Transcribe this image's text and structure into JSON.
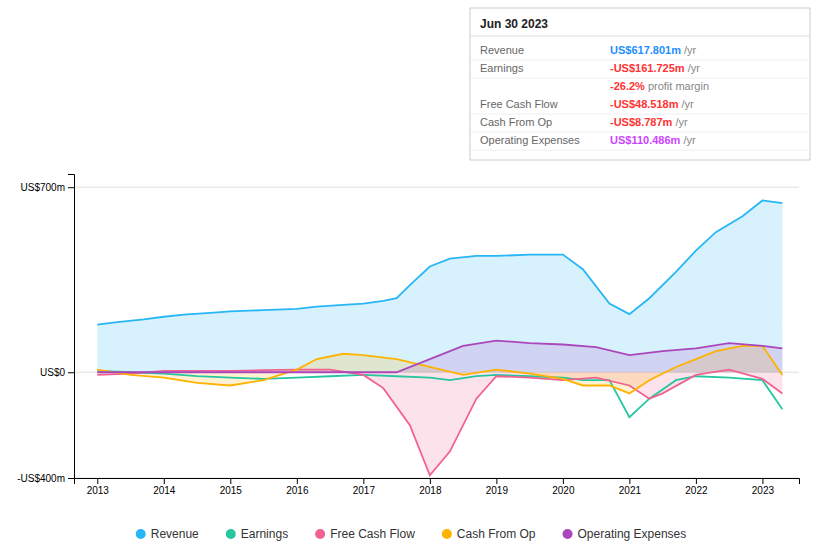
{
  "chart_data": {
    "type": "area",
    "xlim": [
      2012.65,
      2023.55
    ],
    "xticks": [
      2013,
      2014,
      2015,
      2016,
      2017,
      2018,
      2019,
      2020,
      2021,
      2022,
      2023
    ],
    "ylim": [
      -400,
      750
    ],
    "yticks": [
      {
        "value": -400,
        "label": "-US$400m"
      },
      {
        "value": 0,
        "label": "US$0"
      },
      {
        "value": 700,
        "label": "US$700m"
      }
    ],
    "grid": true,
    "legend": "bottom",
    "series": [
      {
        "name": "Revenue",
        "color": "#29b6f6",
        "type": "area",
        "x": [
          2013.0,
          2013.3,
          2013.7,
          2014.0,
          2014.3,
          2014.7,
          2015.0,
          2015.5,
          2016.0,
          2016.3,
          2016.7,
          2017.0,
          2017.3,
          2017.5,
          2017.7,
          2018.0,
          2018.3,
          2018.7,
          2019.0,
          2019.5,
          2020.0,
          2020.3,
          2020.7,
          2021.0,
          2021.3,
          2021.7,
          2022.0,
          2022.3,
          2022.7,
          2023.0,
          2023.3
        ],
        "values": [
          180,
          190,
          200,
          210,
          218,
          225,
          230,
          235,
          240,
          248,
          255,
          260,
          270,
          280,
          330,
          400,
          430,
          440,
          440,
          445,
          445,
          390,
          260,
          220,
          280,
          380,
          460,
          530,
          590,
          650,
          640
        ]
      },
      {
        "name": "Earnings",
        "color": "#26c6a0",
        "type": "line",
        "x": [
          2013.0,
          2013.5,
          2014.0,
          2014.5,
          2015.0,
          2015.5,
          2016.0,
          2016.5,
          2017.0,
          2017.5,
          2018.0,
          2018.3,
          2018.7,
          2019.0,
          2019.5,
          2020.0,
          2020.3,
          2020.7,
          2021.0,
          2021.3,
          2021.7,
          2022.0,
          2022.5,
          2023.0,
          2023.3
        ],
        "values": [
          5,
          0,
          -5,
          -15,
          -20,
          -25,
          -20,
          -15,
          -10,
          -15,
          -20,
          -30,
          -15,
          -10,
          -15,
          -20,
          -30,
          -30,
          -170,
          -100,
          -30,
          -15,
          -20,
          -30,
          -140
        ]
      },
      {
        "name": "Free Cash Flow",
        "color": "#f06292",
        "type": "area",
        "x": [
          2013.0,
          2013.5,
          2014.0,
          2014.5,
          2015.0,
          2015.5,
          2016.0,
          2016.5,
          2017.0,
          2017.3,
          2017.7,
          2018.0,
          2018.3,
          2018.7,
          2019.0,
          2019.5,
          2020.0,
          2020.5,
          2021.0,
          2021.3,
          2021.5,
          2022.0,
          2022.5,
          2023.0,
          2023.3
        ],
        "values": [
          -10,
          -5,
          5,
          5,
          5,
          8,
          10,
          10,
          -10,
          -60,
          -200,
          -390,
          -300,
          -100,
          -15,
          -20,
          -30,
          -20,
          -50,
          -100,
          -80,
          -10,
          10,
          -25,
          -80
        ]
      },
      {
        "name": "Cash From Op",
        "color": "#ffb300",
        "type": "area",
        "x": [
          2013.0,
          2013.5,
          2014.0,
          2014.5,
          2015.0,
          2015.5,
          2016.0,
          2016.3,
          2016.7,
          2017.0,
          2017.5,
          2018.0,
          2018.5,
          2019.0,
          2019.5,
          2020.0,
          2020.3,
          2020.7,
          2021.0,
          2021.3,
          2021.7,
          2022.0,
          2022.3,
          2022.7,
          2023.0,
          2023.3
        ],
        "values": [
          10,
          -10,
          -20,
          -40,
          -50,
          -30,
          10,
          50,
          70,
          65,
          50,
          20,
          -10,
          10,
          -5,
          -25,
          -50,
          -50,
          -80,
          -30,
          20,
          50,
          80,
          100,
          100,
          -10
        ]
      },
      {
        "name": "Operating Expenses",
        "color": "#ab47bc",
        "type": "area",
        "x": [
          2013.0,
          2013.5,
          2014.0,
          2014.5,
          2015.0,
          2015.5,
          2016.0,
          2016.5,
          2017.0,
          2017.5,
          2018.0,
          2018.5,
          2019.0,
          2019.5,
          2020.0,
          2020.5,
          2021.0,
          2021.5,
          2022.0,
          2022.5,
          2023.0,
          2023.3
        ],
        "values": [
          0,
          0,
          0,
          0,
          0,
          0,
          0,
          0,
          0,
          0,
          50,
          100,
          120,
          110,
          105,
          95,
          65,
          80,
          90,
          110,
          100,
          90
        ]
      }
    ],
    "annotations": {
      "title": "Jun 30 2023",
      "rows": [
        {
          "label": "Revenue",
          "value": "US$617.801m",
          "color": "#1e90ff",
          "suffix": " /yr"
        },
        {
          "label": "Earnings",
          "value": "-US$161.725m",
          "color": "#ff3333",
          "suffix": " /yr"
        },
        {
          "value": "-26.2%",
          "color": "#ff3333",
          "suffix": " profit margin"
        },
        {
          "label": "Free Cash Flow",
          "value": "-US$48.518m",
          "color": "#ff3333",
          "suffix": " /yr"
        },
        {
          "label": "Cash From Op",
          "value": "-US$8.787m",
          "color": "#ff3333",
          "suffix": " /yr"
        },
        {
          "label": "Operating Expenses",
          "value": "US$110.486m",
          "color": "#cc44ff",
          "suffix": " /yr"
        }
      ]
    }
  }
}
